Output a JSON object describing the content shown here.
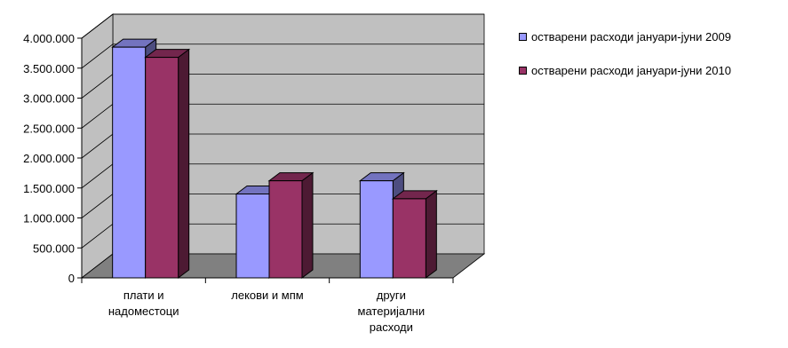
{
  "chart_data": {
    "type": "bar",
    "categories": [
      [
        "плати и",
        "надоместоци"
      ],
      [
        "лекови и мпм"
      ],
      [
        "други",
        "материјални",
        "расходи"
      ]
    ],
    "series": [
      {
        "name": "остварени расходи јануари-јуни 2009",
        "values": [
          3850000,
          1400000,
          1620000
        ],
        "color": "#9999ff"
      },
      {
        "name": "остварени расходи јануари-јуни 2010",
        "values": [
          3680000,
          1620000,
          1320000
        ],
        "color": "#993366"
      }
    ],
    "ylim": [
      0,
      4000000
    ],
    "yticks": [
      "0",
      "500.000",
      "1.000.000",
      "1.500.000",
      "2.000.000",
      "2.500.000",
      "3.000.000",
      "3.500.000",
      "4.000.000"
    ],
    "grid": true,
    "legend_position": "top-right",
    "wall_color": "#c0c0c0",
    "floor_color": "#808080"
  }
}
